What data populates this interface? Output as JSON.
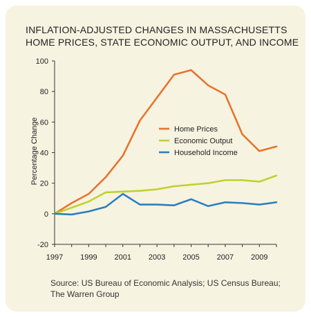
{
  "title_lines": [
    "INFLATION-ADJUSTED CHANGES IN MASSACHUSETTS",
    "HOME PRICES, STATE ECONOMIC OUTPUT, AND INCOME"
  ],
  "source_lines": [
    "Source: US Bureau of Economic Analysis; US Census Bureau;",
    "The Warren Group"
  ],
  "colors": {
    "background": "#f7f3e1",
    "home_prices": "#e8732c",
    "economic_output": "#bfd22b",
    "household_income": "#2a7fbf"
  },
  "chart_data": {
    "type": "line",
    "ylabel": "Percentage Change",
    "xlabel": "",
    "ylim": [
      -20,
      100
    ],
    "xlim": [
      1997,
      2010
    ],
    "y_ticks": [
      -20,
      0,
      20,
      40,
      60,
      80,
      100
    ],
    "x_ticks": [
      1997,
      1999,
      2001,
      2003,
      2005,
      2007,
      2009
    ],
    "legend_position": "center-right",
    "x": [
      1997,
      1998,
      1999,
      2000,
      2001,
      2002,
      2003,
      2004,
      2005,
      2006,
      2007,
      2008,
      2009,
      2010
    ],
    "series": [
      {
        "name": "Home Prices",
        "color": "#e8732c",
        "values": [
          0,
          7,
          13,
          24,
          38,
          61,
          76,
          91,
          94,
          84,
          78,
          52,
          41,
          44
        ]
      },
      {
        "name": "Economic Output",
        "color": "#bfd22b",
        "values": [
          0,
          4,
          8,
          14,
          14.5,
          15,
          16,
          18,
          19,
          20,
          22,
          22,
          21,
          25
        ]
      },
      {
        "name": "Household Income",
        "color": "#2a7fbf",
        "values": [
          0,
          -0.5,
          1.5,
          4.5,
          13,
          6,
          6,
          5.5,
          9.5,
          5,
          7.5,
          7,
          6,
          7.5
        ]
      }
    ]
  }
}
